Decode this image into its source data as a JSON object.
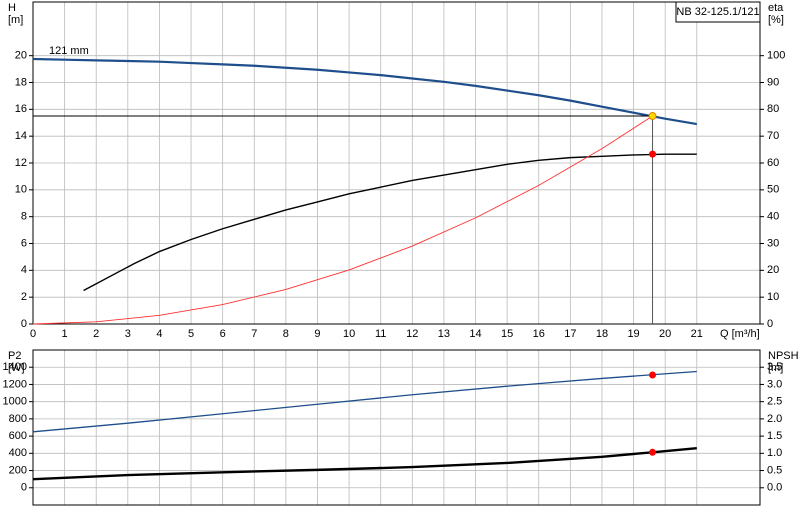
{
  "chart_data": [
    {
      "type": "line",
      "label_box": "NB 32-125.1/121",
      "ylabel": "H",
      "yunit": "[m]",
      "y2label": "eta",
      "y2unit": "[%]",
      "xlabel": "Q [m³/h]",
      "xlim": [
        0,
        23
      ],
      "xticks": [
        0,
        1,
        2,
        3,
        4,
        5,
        6,
        7,
        8,
        9,
        10,
        11,
        12,
        13,
        14,
        15,
        16,
        17,
        18,
        19,
        20,
        21
      ],
      "ylim": [
        0,
        24
      ],
      "yticks": [
        0,
        2,
        4,
        6,
        8,
        10,
        12,
        14,
        16,
        18,
        20
      ],
      "y2lim": [
        0,
        120
      ],
      "y2ticks": [
        0,
        10,
        20,
        30,
        40,
        50,
        60,
        70,
        80,
        90,
        100
      ],
      "grid": true,
      "series": [
        {
          "name": "121 mm",
          "color": "#1f4e8c",
          "width": 2.2,
          "x": [
            0,
            1,
            2,
            3,
            4,
            5,
            6,
            7,
            8,
            9,
            10,
            11,
            12,
            13,
            14,
            15,
            16,
            17,
            18,
            19,
            20,
            21
          ],
          "values": [
            19.75,
            19.7,
            19.65,
            19.6,
            19.55,
            19.45,
            19.35,
            19.25,
            19.1,
            18.95,
            18.75,
            18.55,
            18.3,
            18.05,
            17.75,
            17.4,
            17.05,
            16.65,
            16.2,
            15.75,
            15.3,
            14.9
          ]
        },
        {
          "color": "#000000",
          "width": 1.4,
          "axis": "y2",
          "x": [
            1.6,
            3.2,
            4,
            5,
            6,
            7,
            8,
            9,
            10,
            11,
            12,
            13,
            14,
            15,
            16,
            17,
            18,
            19,
            20,
            21
          ],
          "values": [
            12.5,
            22.5,
            27,
            31.5,
            35.5,
            39,
            42.5,
            45.5,
            48.5,
            51,
            53.5,
            55.5,
            57.5,
            59.5,
            61,
            62,
            62.5,
            63,
            63.3,
            63.3
          ]
        },
        {
          "color": "#ff3030",
          "width": 0.9,
          "x": [
            0,
            2,
            4,
            6,
            8,
            10,
            12,
            14,
            16,
            18,
            19.6
          ],
          "values": [
            0,
            0.16,
            0.65,
            1.45,
            2.58,
            4.03,
            5.81,
            7.91,
            10.33,
            13.07,
            15.5
          ]
        },
        {
          "color": "#000000",
          "width": 1,
          "x": [
            0,
            19.6
          ],
          "values": [
            15.5,
            15.5
          ]
        },
        {
          "color": "#555555",
          "width": 1,
          "x": [
            19.6,
            19.6
          ],
          "values": [
            0,
            15.5
          ]
        }
      ],
      "points": [
        {
          "x": 19.6,
          "y": 15.5,
          "color": "#ffd700"
        },
        {
          "x": 19.6,
          "y": 63.3,
          "color": "#ff0000",
          "axis": "y2"
        }
      ]
    },
    {
      "type": "line",
      "ylabel": "P2",
      "yunit": "[W]",
      "y2label": "NPSH",
      "y2unit": "[m]",
      "xlim": [
        0,
        23
      ],
      "xticks": [
        0,
        1,
        2,
        3,
        4,
        5,
        6,
        7,
        8,
        9,
        10,
        11,
        12,
        13,
        14,
        15,
        16,
        17,
        18,
        19,
        20,
        21
      ],
      "ylim": [
        -200,
        1600
      ],
      "yticks": [
        0,
        200,
        400,
        600,
        800,
        1000,
        1200,
        1400
      ],
      "y2lim": [
        -0.5,
        4.0
      ],
      "y2ticks": [
        {
          "value": 0,
          "label": "0.0"
        },
        0.5,
        {
          "value": 1,
          "label": "1.0"
        },
        1.5,
        {
          "value": 2,
          "label": "2.0"
        },
        2.5,
        {
          "value": 3,
          "label": "3.0"
        },
        3.5
      ],
      "grid": true,
      "series": [
        {
          "color": "#1f4e8c",
          "width": 1.3,
          "x": [
            0,
            3,
            6,
            9,
            12,
            15,
            18,
            21
          ],
          "values": [
            650,
            750,
            860,
            970,
            1080,
            1180,
            1270,
            1350
          ]
        },
        {
          "color": "#000000",
          "width": 2.4,
          "axis": "y2",
          "x": [
            0,
            3,
            6,
            9,
            12,
            15,
            18,
            19.6,
            21
          ],
          "values": [
            0.25,
            0.37,
            0.45,
            0.52,
            0.6,
            0.72,
            0.9,
            1.03,
            1.15
          ]
        }
      ],
      "points": [
        {
          "x": 19.6,
          "y": 1310,
          "color": "#ff0000"
        },
        {
          "x": 19.6,
          "y": 1.03,
          "color": "#ff0000",
          "axis": "y2"
        }
      ]
    }
  ]
}
